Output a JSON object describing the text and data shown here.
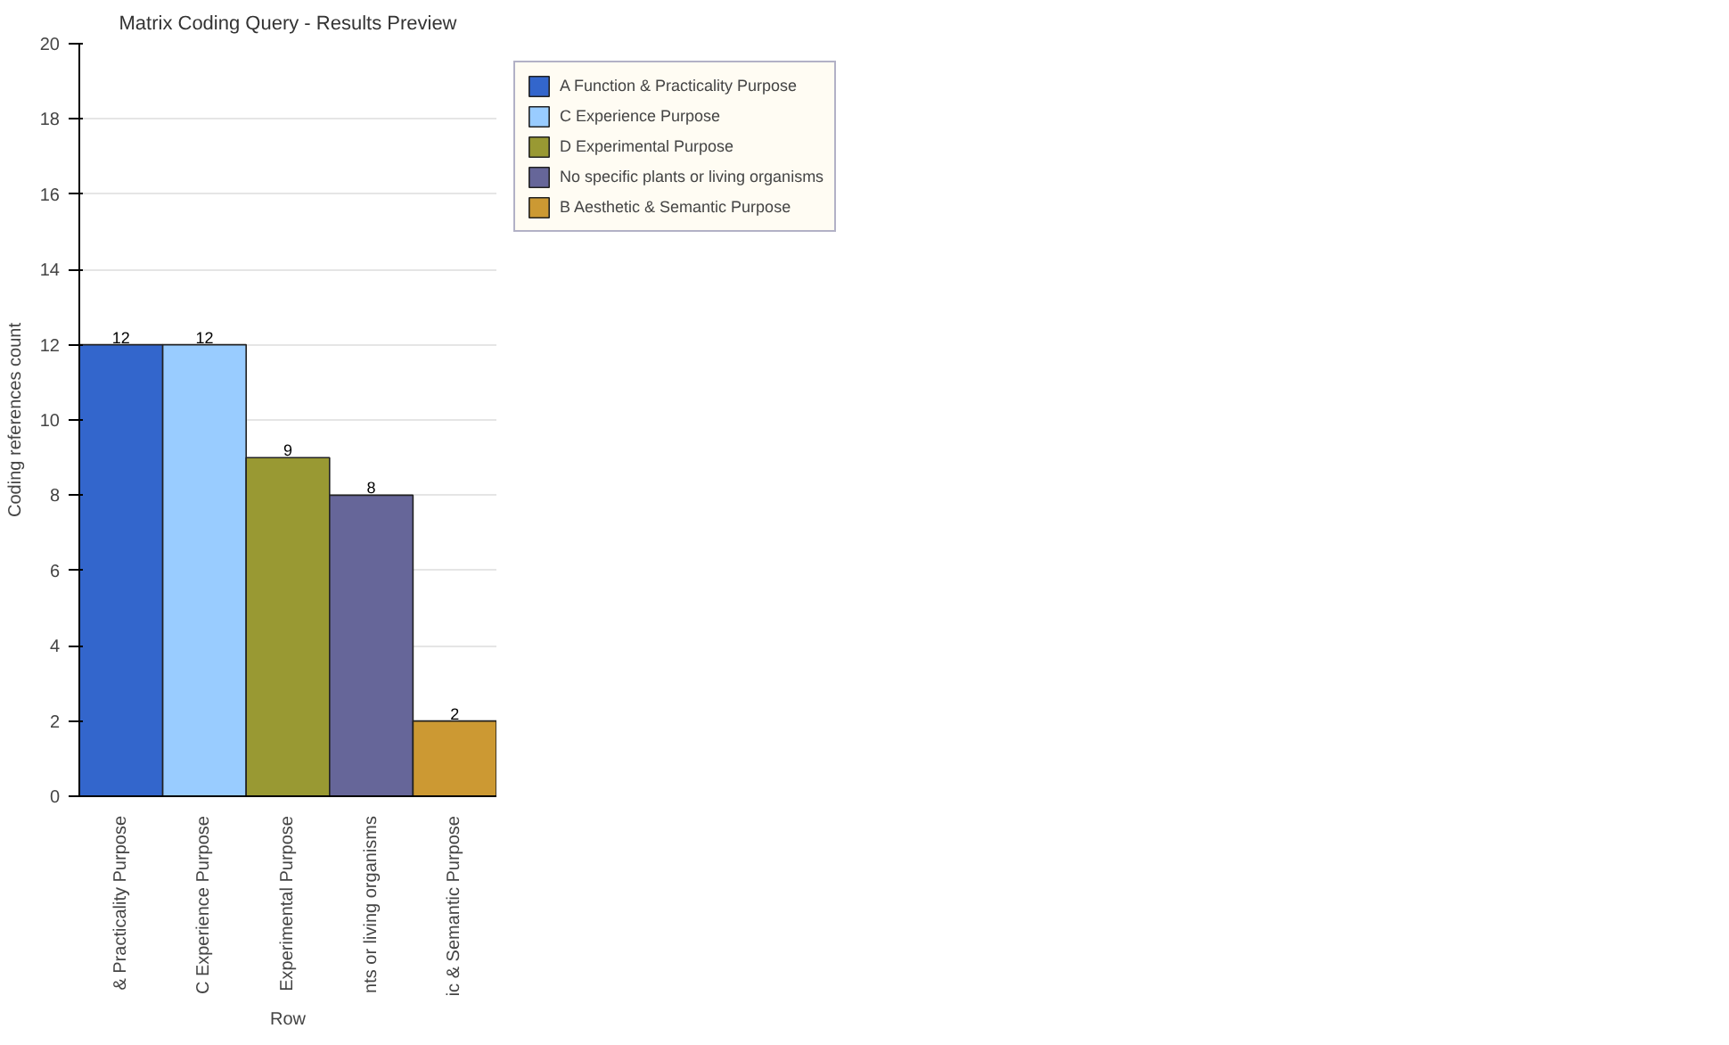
{
  "chart_data": {
    "type": "bar",
    "title": "Matrix Coding Query - Results Preview",
    "xlabel": "Row",
    "ylabel": "Coding references count",
    "categories": [
      "& Practicality Purpose",
      "C Experience Purpose",
      "Experimental Purpose",
      "nts or living organisms",
      "ic & Semantic Purpose"
    ],
    "series": [
      {
        "name": "A Function & Practicality Purpose",
        "color": "#3366cc",
        "values": [
          12,
          null,
          null,
          null,
          null
        ]
      },
      {
        "name": "C Experience Purpose",
        "color": "#99ccff",
        "values": [
          null,
          12,
          null,
          null,
          null
        ]
      },
      {
        "name": "D Experimental Purpose",
        "color": "#999933",
        "values": [
          null,
          null,
          9,
          null,
          null
        ]
      },
      {
        "name": "No specific plants or living organisms",
        "color": "#666699",
        "values": [
          null,
          null,
          null,
          8,
          null
        ]
      },
      {
        "name": "B Aesthetic & Semantic Purpose",
        "color": "#cc9933",
        "values": [
          null,
          null,
          null,
          null,
          2
        ]
      }
    ],
    "ylim": [
      0,
      20
    ],
    "yticks": [
      0,
      2,
      4,
      6,
      8,
      10,
      12,
      14,
      16,
      18,
      20
    ],
    "grid": "y",
    "data_labels": true,
    "legend": "right"
  }
}
